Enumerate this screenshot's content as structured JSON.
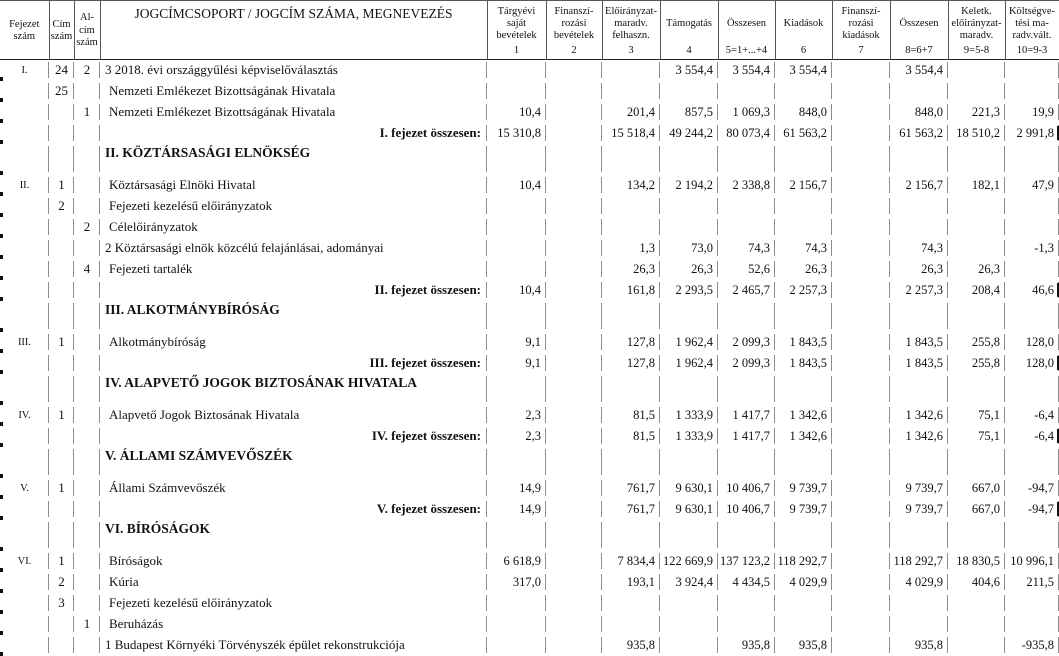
{
  "table": {
    "left_columns": [
      {
        "label": "Fejezet\nszám"
      },
      {
        "label": "Cím\nszám"
      },
      {
        "label": "Al-\ncím\nszám"
      }
    ],
    "name_column_header": "JOGCÍMCSOPORT / JOGCÍM SZÁMA, MEGNEVEZÉS",
    "num_columns": [
      {
        "label": "Tárgyévi\nsaját\nbevételek",
        "index": "1"
      },
      {
        "label": "Finanszí-\nrozási\nbevételek",
        "index": "2"
      },
      {
        "label": "Előirányzat-\nmaradv.\nfelhaszn.",
        "index": "3"
      },
      {
        "label": "Támogatás",
        "index": "4"
      },
      {
        "label": "Összesen",
        "index": "5=1+...+4"
      },
      {
        "label": "Kiadások",
        "index": "6"
      },
      {
        "label": "Finanszí-\nrozási\nkiadások",
        "index": "7"
      },
      {
        "label": "Összesen",
        "index": "8=6+7"
      },
      {
        "label": "Keletk.\nelőirányzat-\nmaradv.",
        "index": "9=5-8"
      },
      {
        "label": "Költségve-\ntési ma-\nradv.vált.",
        "index": "10=9-3"
      }
    ],
    "rows": [
      {
        "type": "item",
        "fejezet": "I.",
        "cim": "24",
        "alcim": "2",
        "flush": true,
        "name": "3 2018. évi országgyűlési képviselőválasztás",
        "values": [
          "",
          "",
          "",
          "3 554,4",
          "3 554,4",
          "3 554,4",
          "",
          "3 554,4",
          "",
          ""
        ]
      },
      {
        "type": "item",
        "cim": "25",
        "name": "Nemzeti Emlékezet Bizottságának Hivatala",
        "values": [
          "",
          "",
          "",
          "",
          "",
          "",
          "",
          "",
          "",
          ""
        ]
      },
      {
        "type": "item",
        "alcim": "1",
        "name": "Nemzeti Emlékezet Bizottságának Hivatala",
        "values": [
          "10,4",
          "",
          "201,4",
          "857,5",
          "1 069,3",
          "848,0",
          "",
          "848,0",
          "221,3",
          "19,9"
        ]
      },
      {
        "type": "total",
        "name": "I. fejezet összesen:",
        "values": [
          "15 310,8",
          "",
          "15 518,4",
          "49 244,2",
          "80 073,4",
          "61 563,2",
          "",
          "61 563,2",
          "18 510,2",
          "2 991,8"
        ]
      },
      {
        "type": "section",
        "name": "II. KÖZTÁRSASÁGI ELNÖKSÉG",
        "values": [
          "",
          "",
          "",
          "",
          "",
          "",
          "",
          "",
          "",
          ""
        ]
      },
      {
        "type": "item",
        "fejezet": "II.",
        "cim": "1",
        "name": "Köztársasági Elnöki Hivatal",
        "values": [
          "10,4",
          "",
          "134,2",
          "2 194,2",
          "2 338,8",
          "2 156,7",
          "",
          "2 156,7",
          "182,1",
          "47,9"
        ]
      },
      {
        "type": "item",
        "cim": "2",
        "name": "Fejezeti kezelésű előirányzatok",
        "values": [
          "",
          "",
          "",
          "",
          "",
          "",
          "",
          "",
          "",
          ""
        ]
      },
      {
        "type": "item",
        "alcim": "2",
        "name": "Célelőirányzatok",
        "values": [
          "",
          "",
          "",
          "",
          "",
          "",
          "",
          "",
          "",
          ""
        ]
      },
      {
        "type": "item",
        "flush": true,
        "name": "2 Köztársasági elnök közcélú felajánlásai, adományai",
        "values": [
          "",
          "",
          "1,3",
          "73,0",
          "74,3",
          "74,3",
          "",
          "74,3",
          "",
          "-1,3"
        ]
      },
      {
        "type": "item",
        "alcim": "4",
        "name": "Fejezeti tartalék",
        "values": [
          "",
          "",
          "26,3",
          "26,3",
          "52,6",
          "26,3",
          "",
          "26,3",
          "26,3",
          ""
        ]
      },
      {
        "type": "total",
        "name": "II. fejezet összesen:",
        "values": [
          "10,4",
          "",
          "161,8",
          "2 293,5",
          "2 465,7",
          "2 257,3",
          "",
          "2 257,3",
          "208,4",
          "46,6"
        ]
      },
      {
        "type": "section",
        "name": "III. ALKOTMÁNYBÍRÓSÁG",
        "values": [
          "",
          "",
          "",
          "",
          "",
          "",
          "",
          "",
          "",
          ""
        ]
      },
      {
        "type": "item",
        "fejezet": "III.",
        "cim": "1",
        "name": "Alkotmánybíróság",
        "values": [
          "9,1",
          "",
          "127,8",
          "1 962,4",
          "2 099,3",
          "1 843,5",
          "",
          "1 843,5",
          "255,8",
          "128,0"
        ]
      },
      {
        "type": "total",
        "name": "III. fejezet összesen:",
        "values": [
          "9,1",
          "",
          "127,8",
          "1 962,4",
          "2 099,3",
          "1 843,5",
          "",
          "1 843,5",
          "255,8",
          "128,0"
        ]
      },
      {
        "type": "section",
        "name": "IV. ALAPVETŐ JOGOK BIZTOSÁNAK HIVATALA",
        "values": [
          "",
          "",
          "",
          "",
          "",
          "",
          "",
          "",
          "",
          ""
        ]
      },
      {
        "type": "item",
        "fejezet": "IV.",
        "cim": "1",
        "name": "Alapvető Jogok Biztosának Hivatala",
        "values": [
          "2,3",
          "",
          "81,5",
          "1 333,9",
          "1 417,7",
          "1 342,6",
          "",
          "1 342,6",
          "75,1",
          "-6,4"
        ]
      },
      {
        "type": "total",
        "name": "IV. fejezet összesen:",
        "values": [
          "2,3",
          "",
          "81,5",
          "1 333,9",
          "1 417,7",
          "1 342,6",
          "",
          "1 342,6",
          "75,1",
          "-6,4"
        ]
      },
      {
        "type": "section",
        "name": "V. ÁLLAMI SZÁMVEVŐSZÉK",
        "values": [
          "",
          "",
          "",
          "",
          "",
          "",
          "",
          "",
          "",
          ""
        ]
      },
      {
        "type": "item",
        "fejezet": "V.",
        "cim": "1",
        "name": "Állami Számvevőszék",
        "values": [
          "14,9",
          "",
          "761,7",
          "9 630,1",
          "10 406,7",
          "9 739,7",
          "",
          "9 739,7",
          "667,0",
          "-94,7"
        ]
      },
      {
        "type": "total",
        "name": "V. fejezet összesen:",
        "values": [
          "14,9",
          "",
          "761,7",
          "9 630,1",
          "10 406,7",
          "9 739,7",
          "",
          "9 739,7",
          "667,0",
          "-94,7"
        ]
      },
      {
        "type": "section",
        "name": "VI. BÍRÓSÁGOK",
        "values": [
          "",
          "",
          "",
          "",
          "",
          "",
          "",
          "",
          "",
          ""
        ]
      },
      {
        "type": "item",
        "fejezet": "VI.",
        "cim": "1",
        "name": "Bíróságok",
        "values": [
          "6 618,9",
          "",
          "7 834,4",
          "122 669,9",
          "137 123,2",
          "118 292,7",
          "",
          "118 292,7",
          "18 830,5",
          "10 996,1"
        ]
      },
      {
        "type": "item",
        "cim": "2",
        "name": "Kúria",
        "values": [
          "317,0",
          "",
          "193,1",
          "3 924,4",
          "4 434,5",
          "4 029,9",
          "",
          "4 029,9",
          "404,6",
          "211,5"
        ]
      },
      {
        "type": "item",
        "cim": "3",
        "name": "Fejezeti kezelésű előirányzatok",
        "values": [
          "",
          "",
          "",
          "",
          "",
          "",
          "",
          "",
          "",
          ""
        ]
      },
      {
        "type": "item",
        "alcim": "1",
        "name": "Beruházás",
        "values": [
          "",
          "",
          "",
          "",
          "",
          "",
          "",
          "",
          "",
          ""
        ]
      },
      {
        "type": "item",
        "flush": true,
        "name": "1 Budapest Környéki Törvényszék épület rekonstrukciója",
        "values": [
          "",
          "",
          "935,8",
          "",
          "935,8",
          "935,8",
          "",
          "935,8",
          "",
          "-935,8"
        ]
      }
    ]
  }
}
